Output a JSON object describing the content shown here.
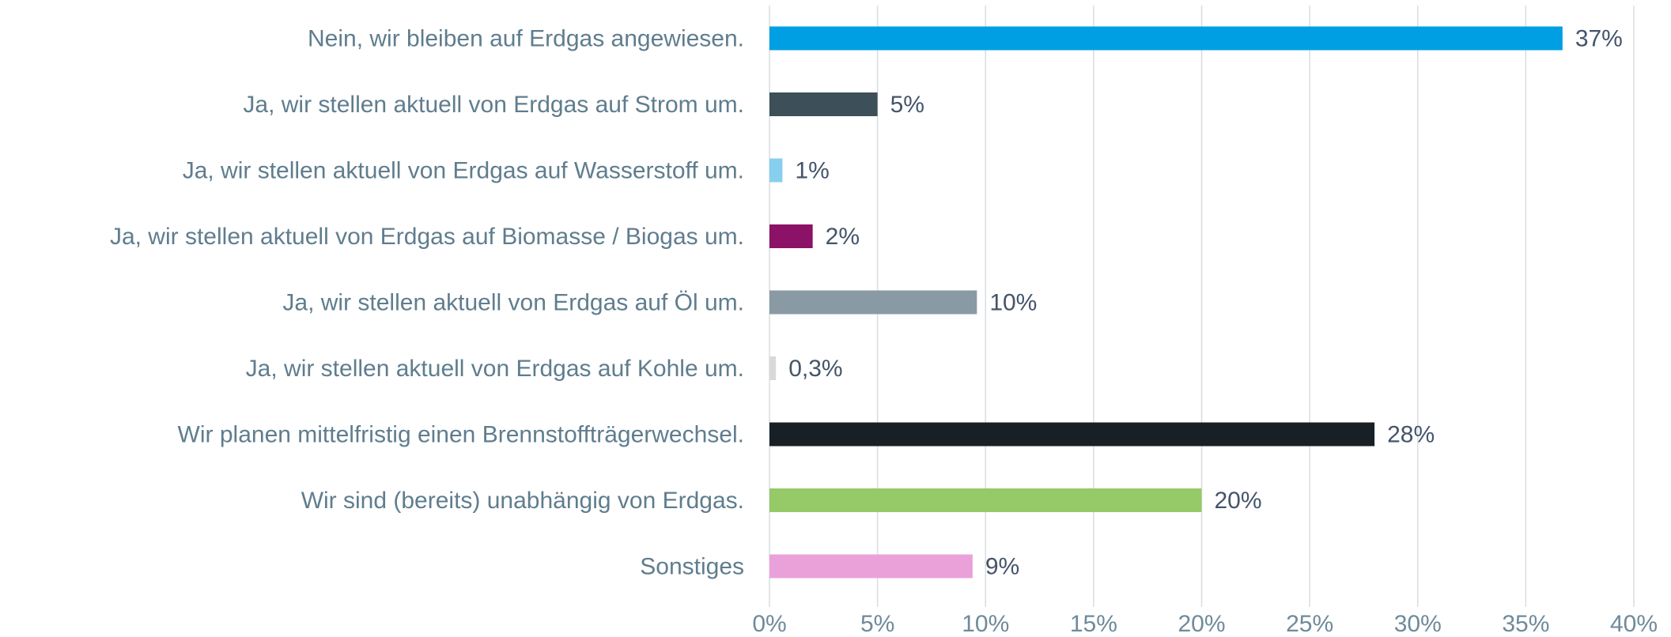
{
  "chart_data": {
    "type": "hbar",
    "categories": [
      "Nein, wir bleiben auf Erdgas angewiesen.",
      "Ja, wir stellen aktuell von Erdgas auf Strom um.",
      "Ja, wir stellen aktuell von Erdgas auf Wasserstoff um.",
      "Ja, wir stellen aktuell von Erdgas auf Biomasse / Biogas um.",
      "Ja, wir stellen aktuell von Erdgas auf Öl um.",
      "Ja, wir stellen aktuell von Erdgas auf Kohle um.",
      "Wir planen mittelfristig einen Brennstoffträgerwechsel.",
      "Wir sind (bereits) unabhängig von Erdgas.",
      "Sonstiges"
    ],
    "values": [
      36.7,
      5,
      0.6,
      2,
      9.6,
      0.3,
      28,
      20,
      9.4
    ],
    "value_labels": [
      "37%",
      "5%",
      "1%",
      "2%",
      "10%",
      "0,3%",
      "28%",
      "20%",
      "9%"
    ],
    "colors": [
      "#009fe3",
      "#3d4f58",
      "#87cfee",
      "#8b1266",
      "#8a9aa5",
      "#d9d9d9",
      "#182025",
      "#96c967",
      "#eaa1d9"
    ],
    "xlim": [
      0,
      40
    ],
    "xticks": [
      {
        "value": 0,
        "label": "0%"
      },
      {
        "value": 5,
        "label": "5%"
      },
      {
        "value": 10,
        "label": "10%"
      },
      {
        "value": 15,
        "label": "15%"
      },
      {
        "value": 20,
        "label": "20%"
      },
      {
        "value": 25,
        "label": "25%"
      },
      {
        "value": 30,
        "label": "30%"
      },
      {
        "value": 35,
        "label": "35%"
      },
      {
        "value": 40,
        "label": "40%"
      }
    ],
    "grid": true
  }
}
